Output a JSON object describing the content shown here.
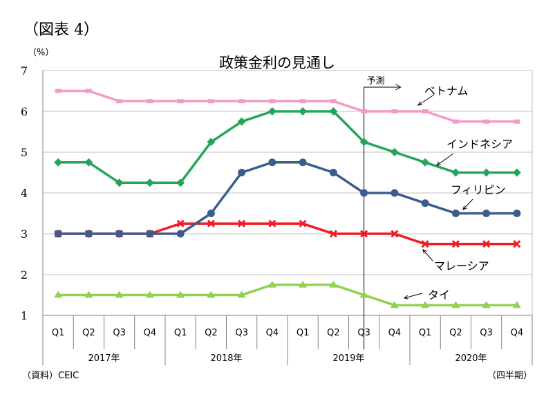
{
  "figure_label": "（図表 4）",
  "unit_label": "（%）",
  "source_note": "（資料）CEIC",
  "period_note": "（四半期）",
  "forecast_label": "予測",
  "chart_data": {
    "type": "line",
    "title": "政策金利の見通し",
    "ylabel": "%",
    "ylim": [
      1,
      7
    ],
    "yticks": [
      1,
      2,
      3,
      4,
      5,
      6,
      7
    ],
    "grid": true,
    "legend": "inline-labels",
    "x": [
      "Q1",
      "Q2",
      "Q3",
      "Q4",
      "Q1",
      "Q2",
      "Q3",
      "Q4",
      "Q1",
      "Q2",
      "Q3",
      "Q4",
      "Q1",
      "Q2",
      "Q3",
      "Q4"
    ],
    "years": [
      "2017年",
      "2018年",
      "2019年",
      "2020年"
    ],
    "forecast_start_index": 11,
    "series": [
      {
        "name": "ベトナム",
        "color": "#f49ac9",
        "marker": "square",
        "values": [
          6.5,
          6.5,
          6.25,
          6.25,
          6.25,
          6.25,
          6.25,
          6.25,
          6.25,
          6.25,
          6.0,
          6.0,
          6.0,
          5.75,
          5.75,
          5.75
        ]
      },
      {
        "name": "インドネシア",
        "color": "#24a55a",
        "marker": "diamond",
        "values": [
          4.75,
          4.75,
          4.25,
          4.25,
          4.25,
          5.25,
          5.75,
          6.0,
          6.0,
          6.0,
          5.25,
          5.0,
          4.75,
          4.5,
          4.5,
          4.5
        ]
      },
      {
        "name": "フィリピン",
        "color": "#3c5c8c",
        "marker": "circle",
        "values": [
          3.0,
          3.0,
          3.0,
          3.0,
          3.0,
          3.5,
          4.5,
          4.75,
          4.75,
          4.5,
          4.0,
          4.0,
          3.75,
          3.5,
          3.5,
          3.5
        ]
      },
      {
        "name": "マレーシア",
        "color": "#ee1c24",
        "marker": "x",
        "values": [
          3.0,
          3.0,
          3.0,
          3.0,
          3.25,
          3.25,
          3.25,
          3.25,
          3.25,
          3.0,
          3.0,
          3.0,
          2.75,
          2.75,
          2.75,
          2.75
        ]
      },
      {
        "name": "タイ",
        "color": "#92d050",
        "marker": "triangle",
        "values": [
          1.5,
          1.5,
          1.5,
          1.5,
          1.5,
          1.5,
          1.5,
          1.75,
          1.75,
          1.75,
          1.5,
          1.25,
          1.25,
          1.25,
          1.25,
          1.25
        ]
      }
    ]
  }
}
